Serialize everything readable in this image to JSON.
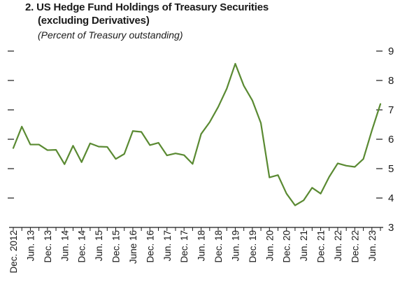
{
  "title": {
    "line1": "2. US Hedge Fund Holdings of Treasury Securities",
    "line2": "(excluding Derivatives)",
    "subtitle": "(Percent of Treasury outstanding)"
  },
  "colors": {
    "line": "#5a8a32",
    "axis": "#1a1a1a",
    "text": "#1a1a1a"
  },
  "chart_data": {
    "type": "line",
    "title": "2. US Hedge Fund Holdings of Treasury Securities (excluding Derivatives)",
    "subtitle": "(Percent of Treasury outstanding)",
    "ylim": [
      3,
      9
    ],
    "yticks": [
      3,
      4,
      5,
      6,
      7,
      8,
      9
    ],
    "ytick_labels": [
      "3",
      "4",
      "5",
      "6",
      "7",
      "8",
      "9"
    ],
    "grid": false,
    "x_tick_labels": [
      "Dec. 2012",
      "Jun. 13",
      "Dec. 13",
      "Jun. 14",
      "Dec. 14",
      "Jun. 15",
      "Dec. 15",
      "June 16",
      "Dec. 16",
      "Jun. 17",
      "Dec. 17",
      "Jun. 18",
      "Dec. 18",
      "Jun. 19",
      "Dec. 19",
      "Jun. 20",
      "Dec. 20",
      "Jun. 21",
      "Dec. 21",
      "Jun. 22",
      "Dec. 22",
      "Jun. 23"
    ],
    "series": [
      {
        "values": [
          5.7,
          6.43,
          5.82,
          5.82,
          5.63,
          5.64,
          5.15,
          5.78,
          5.22,
          5.86,
          5.75,
          5.74,
          5.33,
          5.5,
          6.28,
          6.25,
          5.8,
          5.88,
          5.45,
          5.52,
          5.46,
          5.16,
          6.18,
          6.58,
          7.1,
          7.72,
          8.57,
          7.82,
          7.32,
          6.55,
          4.7,
          4.78,
          4.15,
          3.75,
          3.92,
          4.35,
          4.15,
          4.72,
          5.18,
          5.1,
          5.06,
          5.33,
          6.3,
          7.2
        ]
      }
    ]
  }
}
